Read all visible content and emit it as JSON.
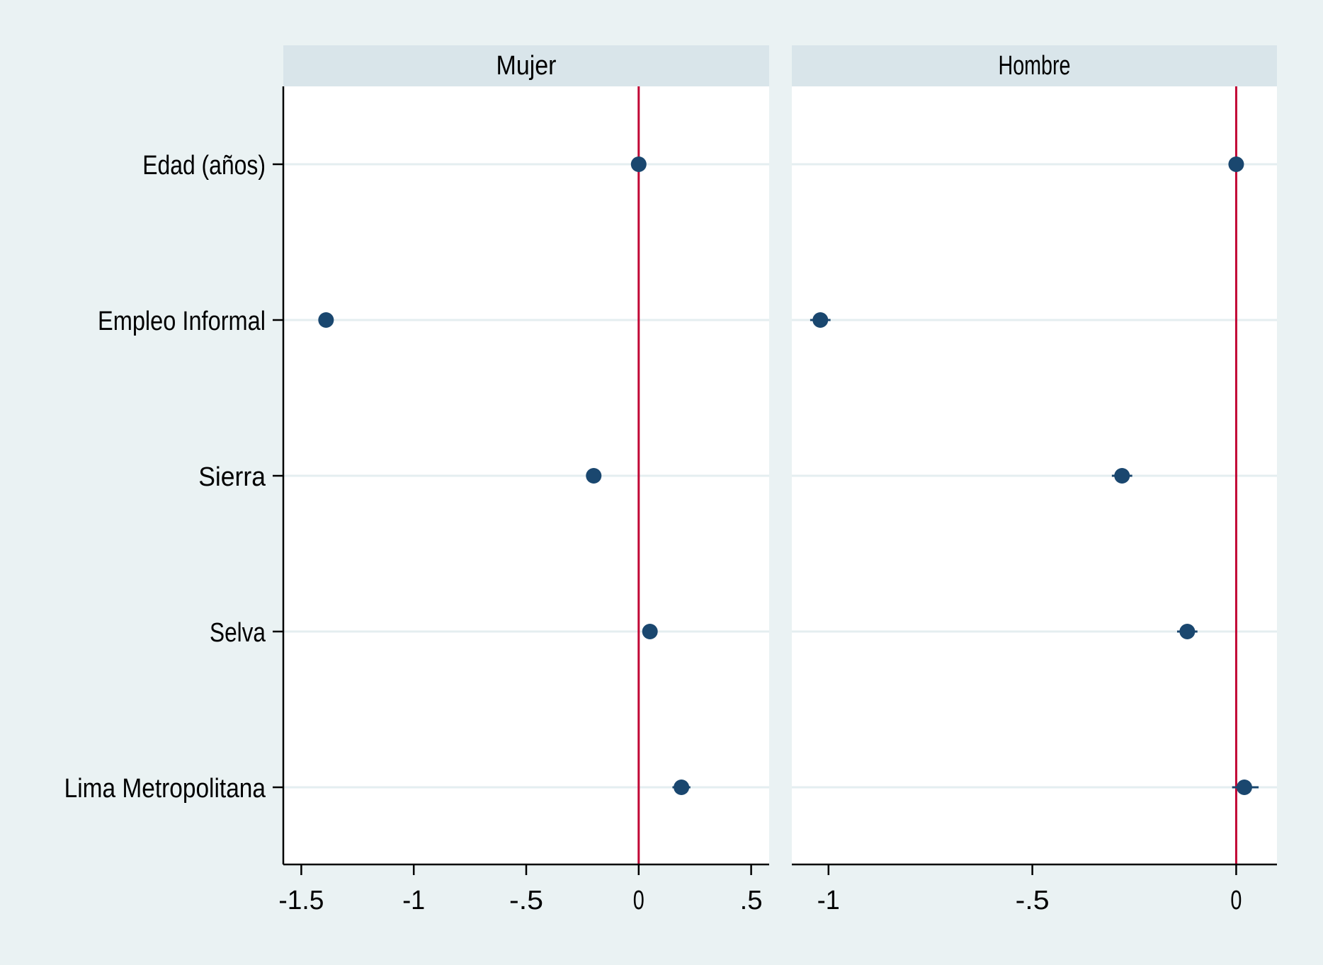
{
  "chart_data": {
    "type": "scatter",
    "subtype": "coefficient-plot",
    "categories": [
      "Edad (años)",
      "Empleo Informal",
      "Sierra",
      "Selva",
      "Lima Metropolitana"
    ],
    "panels": [
      {
        "title": "Mujer",
        "xlim": [
          -1.58,
          0.58
        ],
        "xticks": [
          -1.5,
          -1,
          -0.5,
          0,
          0.5
        ],
        "xtick_labels": [
          "-1.5",
          "-1",
          "-.5",
          "0",
          ".5"
        ],
        "reference_line_x": 0,
        "estimates": [
          0.0,
          -1.39,
          -0.2,
          0.05,
          0.19
        ],
        "ci_low": [
          -0.005,
          -1.41,
          -0.22,
          0.03,
          0.15
        ],
        "ci_high": [
          0.005,
          -1.37,
          -0.18,
          0.07,
          0.23
        ]
      },
      {
        "title": "Hombre",
        "xlim": [
          -1.09,
          0.1
        ],
        "xticks": [
          -1,
          -0.5,
          0
        ],
        "xtick_labels": [
          "-1",
          "-.5",
          "0"
        ],
        "reference_line_x": 0,
        "estimates": [
          0.0,
          -1.02,
          -0.28,
          -0.12,
          0.02
        ],
        "ci_low": [
          -0.005,
          -1.045,
          -0.305,
          -0.145,
          -0.01
        ],
        "ci_high": [
          0.005,
          -0.995,
          -0.255,
          -0.095,
          0.055
        ]
      }
    ],
    "colors": {
      "background": "#eaf2f3",
      "plot_area": "#ffffff",
      "strip": "#d9e5ea",
      "gridline": "#e4eef0",
      "marker": "#1a476f",
      "reference_line": "#c10534",
      "axis": "#000000"
    },
    "grid": true,
    "legend": "none"
  }
}
